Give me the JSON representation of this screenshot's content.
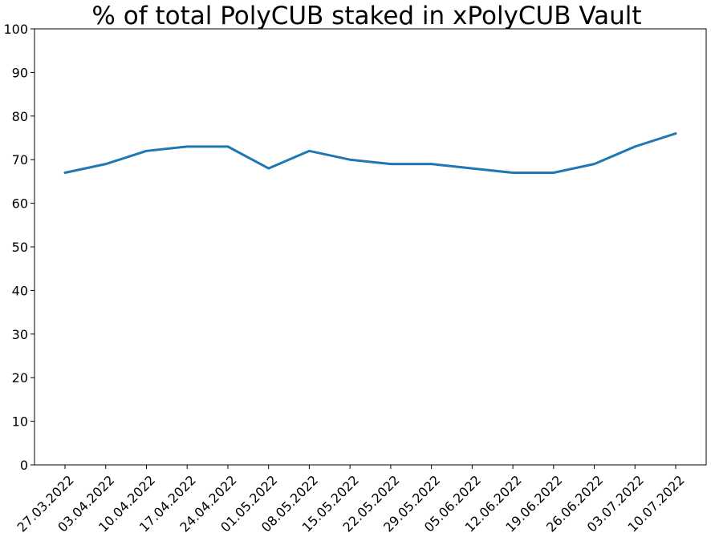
{
  "chart_data": {
    "type": "line",
    "title": "% of total PolyCUB staked in xPolyCUB Vault",
    "xlabel": "",
    "ylabel": "",
    "x": [
      "27.03.2022",
      "03.04.2022",
      "10.04.2022",
      "17.04.2022",
      "24.04.2022",
      "01.05.2022",
      "08.05.2022",
      "15.05.2022",
      "22.05.2022",
      "29.05.2022",
      "05.06.2022",
      "12.06.2022",
      "19.06.2022",
      "26.06.2022",
      "03.07.2022",
      "10.07.2022"
    ],
    "series": [
      {
        "values": [
          67,
          69,
          72,
          73,
          73,
          68,
          72,
          70,
          69,
          69,
          68,
          67,
          67,
          69,
          73,
          76
        ],
        "color": "#1f77b4"
      }
    ],
    "ylim": [
      0,
      100
    ],
    "yticks": [
      "0",
      "10",
      "20",
      "30",
      "40",
      "50",
      "60",
      "70",
      "80",
      "90",
      "100"
    ],
    "grid": false,
    "legend": "none"
  }
}
